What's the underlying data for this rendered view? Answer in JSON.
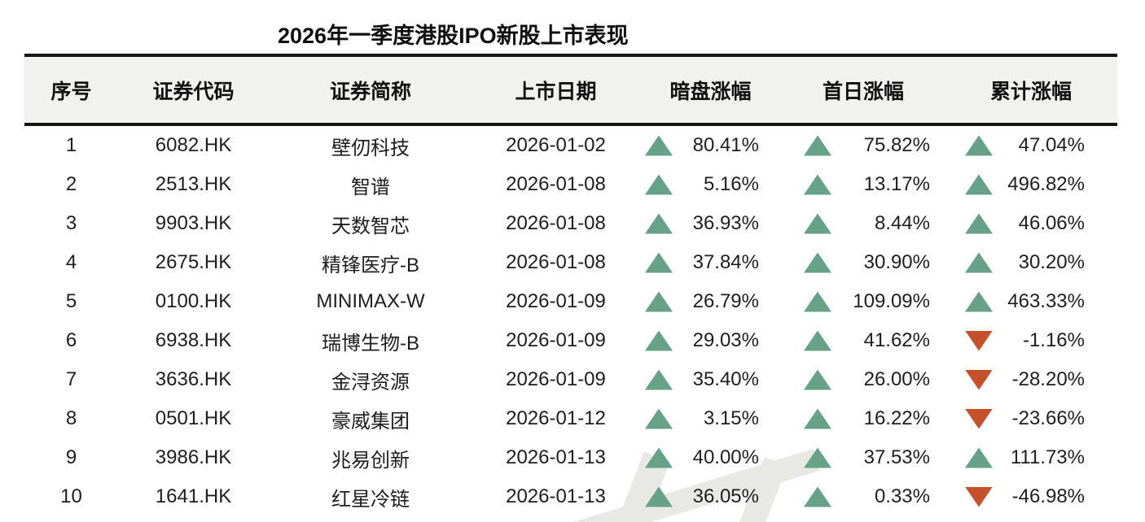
{
  "title": "2026年一季度港股IPO新股上市表现",
  "colors": {
    "up": "#67A188",
    "down": "#C5502A",
    "header_bg": "#F1F1EF",
    "border": "#161616",
    "text": "#1E1E1E",
    "watermark": "#E4E4E0"
  },
  "icons": {
    "up_triangle": "▲",
    "down_triangle": "▼"
  },
  "chart_data": {
    "type": "table",
    "title": "2026年一季度港股IPO新股上市表现",
    "columns": [
      "序号",
      "证券代码",
      "证券简称",
      "上市日期",
      "暗盘涨幅",
      "首日涨幅",
      "累计涨幅"
    ],
    "rows": [
      {
        "no": "1",
        "code": "6082.HK",
        "name": "壁仞科技",
        "date": "2026-01-02",
        "dark": {
          "dir": "up",
          "value": "80.41%"
        },
        "first": {
          "dir": "up",
          "value": "75.82%"
        },
        "cum": {
          "dir": "up",
          "value": "47.04%"
        }
      },
      {
        "no": "2",
        "code": "2513.HK",
        "name": "智谱",
        "date": "2026-01-08",
        "dark": {
          "dir": "up",
          "value": "5.16%"
        },
        "first": {
          "dir": "up",
          "value": "13.17%"
        },
        "cum": {
          "dir": "up",
          "value": "496.82%"
        }
      },
      {
        "no": "3",
        "code": "9903.HK",
        "name": "天数智芯",
        "date": "2026-01-08",
        "dark": {
          "dir": "up",
          "value": "36.93%"
        },
        "first": {
          "dir": "up",
          "value": "8.44%"
        },
        "cum": {
          "dir": "up",
          "value": "46.06%"
        }
      },
      {
        "no": "4",
        "code": "2675.HK",
        "name": "精锋医疗-B",
        "date": "2026-01-08",
        "dark": {
          "dir": "up",
          "value": "37.84%"
        },
        "first": {
          "dir": "up",
          "value": "30.90%"
        },
        "cum": {
          "dir": "up",
          "value": "30.20%"
        }
      },
      {
        "no": "5",
        "code": "0100.HK",
        "name": "MINIMAX-W",
        "date": "2026-01-09",
        "dark": {
          "dir": "up",
          "value": "26.79%"
        },
        "first": {
          "dir": "up",
          "value": "109.09%"
        },
        "cum": {
          "dir": "up",
          "value": "463.33%"
        }
      },
      {
        "no": "6",
        "code": "6938.HK",
        "name": "瑞博生物-B",
        "date": "2026-01-09",
        "dark": {
          "dir": "up",
          "value": "29.03%"
        },
        "first": {
          "dir": "up",
          "value": "41.62%"
        },
        "cum": {
          "dir": "down",
          "value": "-1.16%"
        }
      },
      {
        "no": "7",
        "code": "3636.HK",
        "name": "金浔资源",
        "date": "2026-01-09",
        "dark": {
          "dir": "up",
          "value": "35.40%"
        },
        "first": {
          "dir": "up",
          "value": "26.00%"
        },
        "cum": {
          "dir": "down",
          "value": "-28.20%"
        }
      },
      {
        "no": "8",
        "code": "0501.HK",
        "name": "豪威集团",
        "date": "2026-01-12",
        "dark": {
          "dir": "up",
          "value": "3.15%"
        },
        "first": {
          "dir": "up",
          "value": "16.22%"
        },
        "cum": {
          "dir": "down",
          "value": "-23.66%"
        }
      },
      {
        "no": "9",
        "code": "3986.HK",
        "name": "兆易创新",
        "date": "2026-01-13",
        "dark": {
          "dir": "up",
          "value": "40.00%"
        },
        "first": {
          "dir": "up",
          "value": "37.53%"
        },
        "cum": {
          "dir": "up",
          "value": "111.73%"
        }
      },
      {
        "no": "10",
        "code": "1641.HK",
        "name": "红星冷链",
        "date": "2026-01-13",
        "dark": {
          "dir": "up",
          "value": "36.05%"
        },
        "first": {
          "dir": "up",
          "value": "0.33%"
        },
        "cum": {
          "dir": "down",
          "value": "-46.98%"
        }
      }
    ]
  }
}
